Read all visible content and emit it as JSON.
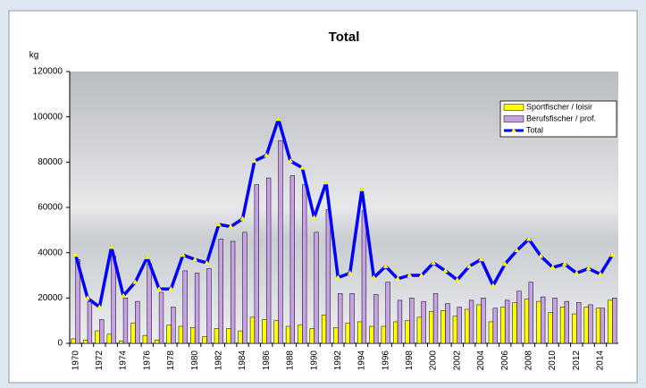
{
  "chart_data": {
    "type": "bar",
    "title": "Total",
    "y_label": "kg",
    "categories": [
      "1970",
      null,
      "1972",
      null,
      "1974",
      null,
      "1976",
      null,
      "1978",
      null,
      "1980",
      null,
      "1982",
      null,
      "1984",
      null,
      "1986",
      null,
      "1988",
      null,
      "1990",
      null,
      "1992",
      null,
      "1994",
      null,
      "1996",
      null,
      "1998",
      null,
      "2000",
      null,
      "2002",
      null,
      "2004",
      null,
      "2006",
      null,
      "2008",
      null,
      "2010",
      null,
      "2012",
      null,
      "2014",
      null
    ],
    "series": [
      {
        "name": "Sportfischer / loisir",
        "type": "bar",
        "color": "#ffff00",
        "values": [
          2000,
          1500,
          5500,
          4000,
          1000,
          9000,
          3500,
          1500,
          8000,
          7500,
          7000,
          3000,
          6500,
          6500,
          5500,
          11500,
          10500,
          10000,
          7500,
          8000,
          6500,
          12500,
          7000,
          9000,
          9500,
          7500,
          7500,
          9500,
          10000,
          11500,
          14000,
          14500,
          12000,
          15000,
          17000,
          9500,
          16000,
          18000,
          19500,
          18500,
          13500,
          16000,
          13000,
          16000,
          15500,
          19000
        ]
      },
      {
        "name": "Berufsfischer / prof.",
        "type": "bar",
        "color": "#c8a0e8",
        "values": [
          37000,
          18500,
          10500,
          38500,
          20000,
          18500,
          35000,
          22500,
          16000,
          32000,
          31000,
          33000,
          46000,
          45000,
          49000,
          70000,
          73000,
          89500,
          74000,
          70000,
          49000,
          59000,
          22000,
          22000,
          58500,
          21500,
          27000,
          19000,
          20000,
          18500,
          22000,
          17500,
          16000,
          19000,
          20000,
          15500,
          19000,
          23000,
          27000,
          20500,
          20000,
          18500,
          18000,
          17000,
          15500,
          20000
        ]
      },
      {
        "name": "Total",
        "type": "line",
        "color": "#0000ff",
        "values": [
          39000,
          20000,
          16000,
          42500,
          21000,
          27000,
          38000,
          24000,
          24000,
          39000,
          37000,
          35500,
          52500,
          51500,
          55000,
          80500,
          83000,
          99000,
          80500,
          77500,
          55500,
          71000,
          29000,
          31000,
          68000,
          29000,
          34000,
          28500,
          30000,
          30000,
          35500,
          32000,
          28000,
          34000,
          37000,
          25500,
          35000,
          41000,
          46000,
          38500,
          33500,
          35000,
          31000,
          33000,
          30500,
          39000
        ]
      }
    ],
    "ylim": [
      0,
      120000
    ],
    "yticks": [
      0,
      20000,
      40000,
      60000,
      80000,
      100000,
      120000
    ],
    "legend": "upper right"
  }
}
